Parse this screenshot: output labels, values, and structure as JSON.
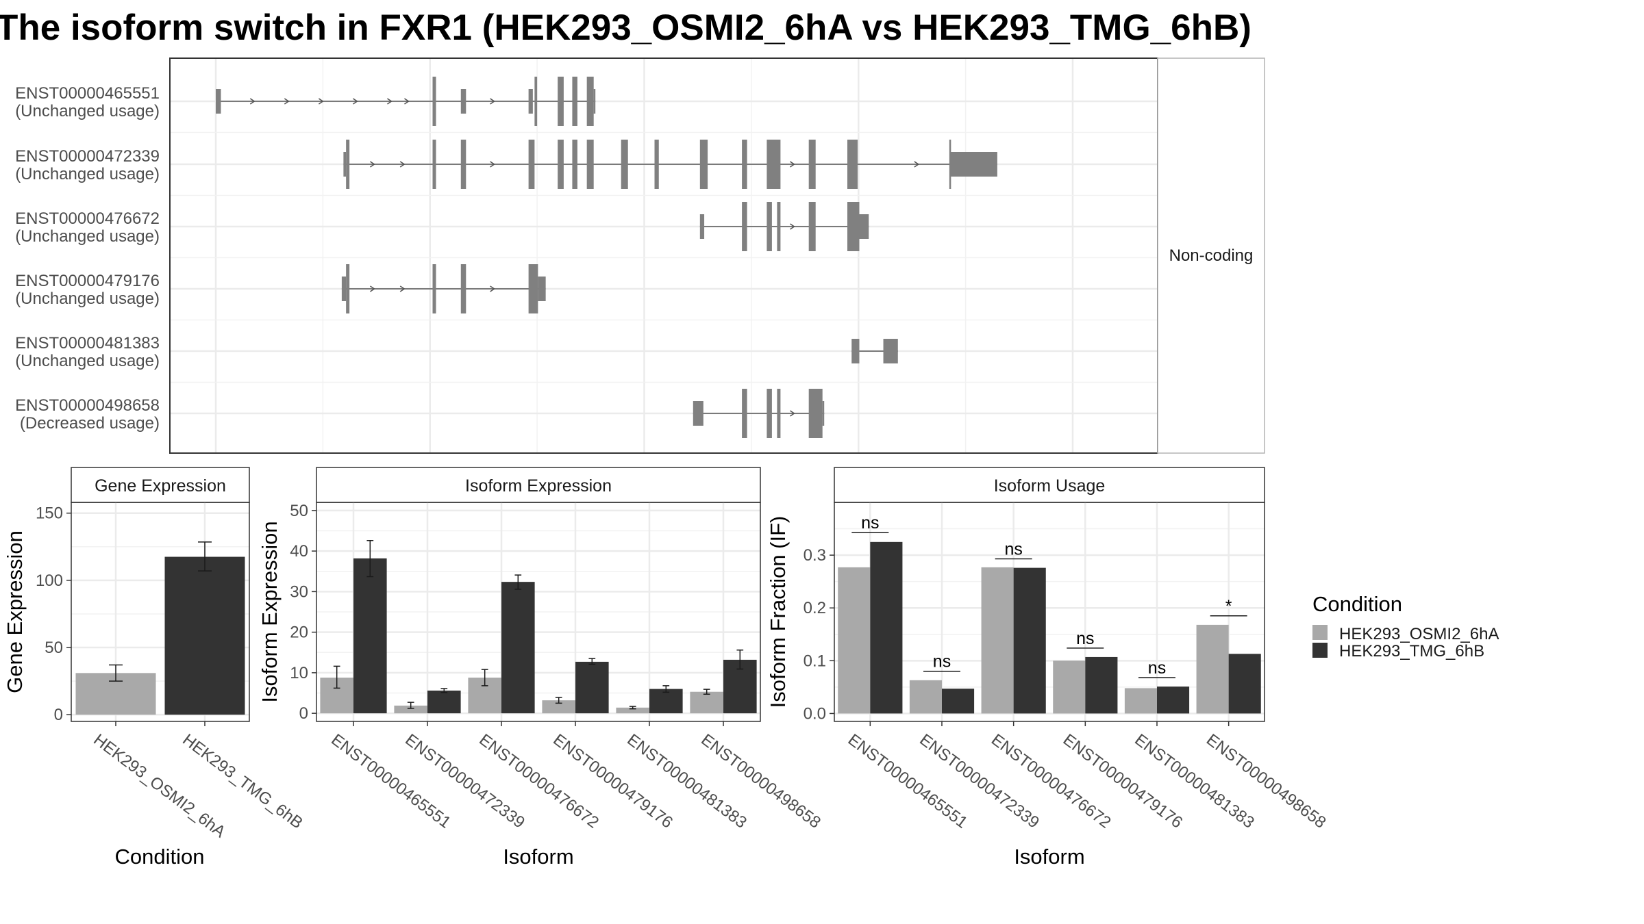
{
  "title": "The isoform switch in FXR1 (HEK293_OSMI2_6hA vs HEK293_TMG_6hB)",
  "colors": {
    "condA": "#a9a9a9",
    "condB": "#333333",
    "exon": "#808080",
    "strip_bg": "#ffffff",
    "grid": "#ebebeb"
  },
  "structure": {
    "strip_label": "Non-coding",
    "xlim": [
      0,
      1
    ],
    "isoforms": [
      {
        "id": "ENST00000465551",
        "usage": "(Unchanged usage)",
        "exons": [
          [
            0.0,
            0.006,
            "s"
          ],
          [
            0.253,
            0.257,
            "t"
          ],
          [
            0.286,
            0.292,
            "s"
          ],
          [
            0.365,
            0.37,
            "s"
          ],
          [
            0.372,
            0.375,
            "t"
          ],
          [
            0.399,
            0.406,
            "t"
          ],
          [
            0.416,
            0.422,
            "t"
          ],
          [
            0.433,
            0.441,
            "t"
          ],
          [
            0.441,
            0.443,
            "s"
          ]
        ],
        "arrows": [
          0.045,
          0.085,
          0.125,
          0.165,
          0.205,
          0.225,
          0.325
        ]
      },
      {
        "id": "ENST00000472339",
        "usage": "(Unchanged usage)",
        "exons": [
          [
            0.149,
            0.152,
            "s"
          ],
          [
            0.152,
            0.156,
            "t"
          ],
          [
            0.253,
            0.257,
            "t"
          ],
          [
            0.286,
            0.292,
            "t"
          ],
          [
            0.365,
            0.372,
            "t"
          ],
          [
            0.399,
            0.406,
            "t"
          ],
          [
            0.416,
            0.422,
            "t"
          ],
          [
            0.433,
            0.441,
            "t"
          ],
          [
            0.473,
            0.481,
            "t"
          ],
          [
            0.512,
            0.517,
            "t"
          ],
          [
            0.565,
            0.574,
            "t"
          ],
          [
            0.614,
            0.62,
            "t"
          ],
          [
            0.643,
            0.659,
            "t"
          ],
          [
            0.692,
            0.7,
            "t"
          ],
          [
            0.737,
            0.749,
            "t"
          ],
          [
            0.856,
            0.857,
            "t"
          ],
          [
            0.857,
            0.912,
            "s"
          ]
        ],
        "arrows": [
          0.185,
          0.22,
          0.325,
          0.675,
          0.82
        ]
      },
      {
        "id": "ENST00000476672",
        "usage": "(Unchanged usage)",
        "exons": [
          [
            0.565,
            0.57,
            "s"
          ],
          [
            0.614,
            0.62,
            "t"
          ],
          [
            0.643,
            0.649,
            "t"
          ],
          [
            0.655,
            0.659,
            "t"
          ],
          [
            0.692,
            0.7,
            "t"
          ],
          [
            0.737,
            0.751,
            "t"
          ],
          [
            0.751,
            0.762,
            "s"
          ]
        ],
        "arrows": [
          0.675
        ]
      },
      {
        "id": "ENST00000479176",
        "usage": "(Unchanged usage)",
        "exons": [
          [
            0.147,
            0.152,
            "s"
          ],
          [
            0.152,
            0.156,
            "t"
          ],
          [
            0.253,
            0.257,
            "t"
          ],
          [
            0.286,
            0.292,
            "t"
          ],
          [
            0.365,
            0.376,
            "t"
          ],
          [
            0.376,
            0.385,
            "s"
          ]
        ],
        "arrows": [
          0.185,
          0.22,
          0.325
        ]
      },
      {
        "id": "ENST00000481383",
        "usage": "(Unchanged usage)",
        "exons": [
          [
            0.742,
            0.751,
            "s"
          ],
          [
            0.779,
            0.796,
            "s"
          ]
        ],
        "arrows": []
      },
      {
        "id": "ENST00000498658",
        "usage": "(Decreased usage)",
        "exons": [
          [
            0.557,
            0.569,
            "s"
          ],
          [
            0.614,
            0.62,
            "t"
          ],
          [
            0.643,
            0.649,
            "t"
          ],
          [
            0.655,
            0.659,
            "t"
          ],
          [
            0.692,
            0.708,
            "t"
          ],
          [
            0.708,
            0.71,
            "s"
          ]
        ],
        "arrows": [
          0.675
        ]
      }
    ]
  },
  "legend": {
    "title": "Condition",
    "items": [
      {
        "label": "HEK293_OSMI2_6hA",
        "color": "#a9a9a9"
      },
      {
        "label": "HEK293_TMG_6hB",
        "color": "#333333"
      }
    ]
  },
  "chart_data": [
    {
      "type": "bar",
      "title": "Gene Expression",
      "xlabel": "Condition",
      "ylabel": "Gene Expression",
      "ylim": [
        -5,
        158
      ],
      "yticks": [
        0,
        50,
        100,
        150
      ],
      "yticklabels": [
        "0",
        "50",
        "100",
        "150"
      ],
      "categories": [
        "HEK293_OSMI2_6hA",
        "HEK293_TMG_6hB"
      ],
      "series": [
        {
          "name": "HEK293_OSMI2_6hA",
          "values": [
            31,
            null
          ],
          "err": [
            [
              25,
              37
            ],
            null
          ]
        },
        {
          "name": "HEK293_TMG_6hB",
          "values": [
            null,
            117.5
          ],
          "err": [
            null,
            [
              107,
              128.5
            ]
          ]
        }
      ],
      "grouped": false
    },
    {
      "type": "bar",
      "title": "Isoform Expression",
      "xlabel": "Isoform",
      "ylabel": "Isoform Expression",
      "ylim": [
        -2,
        52
      ],
      "yticks": [
        0,
        10,
        20,
        30,
        40,
        50
      ],
      "yticklabels": [
        "0",
        "10",
        "20",
        "30",
        "40",
        "50"
      ],
      "categories": [
        "ENST00000465551",
        "ENST00000472339",
        "ENST00000476672",
        "ENST00000479176",
        "ENST00000481383",
        "ENST00000498658"
      ],
      "series": [
        {
          "name": "HEK293_OSMI2_6hA",
          "values": [
            8.8,
            1.9,
            8.8,
            3.2,
            1.4,
            5.3
          ],
          "err": [
            [
              6.2,
              11.6
            ],
            [
              1.2,
              2.7
            ],
            [
              6.8,
              10.8
            ],
            [
              2.5,
              3.9
            ],
            [
              1.1,
              1.7
            ],
            [
              4.7,
              5.9
            ]
          ]
        },
        {
          "name": "HEK293_TMG_6hB",
          "values": [
            38.2,
            5.6,
            32.4,
            12.7,
            6.0,
            13.2
          ],
          "err": [
            [
              33.7,
              42.6
            ],
            [
              5.1,
              6.1
            ],
            [
              30.6,
              34.1
            ],
            [
              12.1,
              13.5
            ],
            [
              5.2,
              6.8
            ],
            [
              10.9,
              15.6
            ]
          ]
        }
      ],
      "grouped": true
    },
    {
      "type": "bar",
      "title": "Isoform Usage",
      "xlabel": "Isoform",
      "ylabel": "Isoform Fraction (IF)",
      "ylim": [
        -0.015,
        0.4
      ],
      "yticks": [
        0,
        0.1,
        0.2,
        0.3
      ],
      "yticklabels": [
        "0.0",
        "0.1",
        "0.2",
        "0.3"
      ],
      "categories": [
        "ENST00000465551",
        "ENST00000472339",
        "ENST00000476672",
        "ENST00000479176",
        "ENST00000481383",
        "ENST00000498658"
      ],
      "series": [
        {
          "name": "HEK293_OSMI2_6hA",
          "values": [
            0.277,
            0.063,
            0.277,
            0.1,
            0.048,
            0.168
          ]
        },
        {
          "name": "HEK293_TMG_6hB",
          "values": [
            0.325,
            0.047,
            0.276,
            0.107,
            0.051,
            0.113
          ]
        }
      ],
      "significance": [
        "ns",
        "ns",
        "ns",
        "ns",
        "ns",
        "*"
      ],
      "sig_y": [
        0.343,
        0.08,
        0.293,
        0.124,
        0.068,
        0.185
      ],
      "grouped": true
    }
  ]
}
